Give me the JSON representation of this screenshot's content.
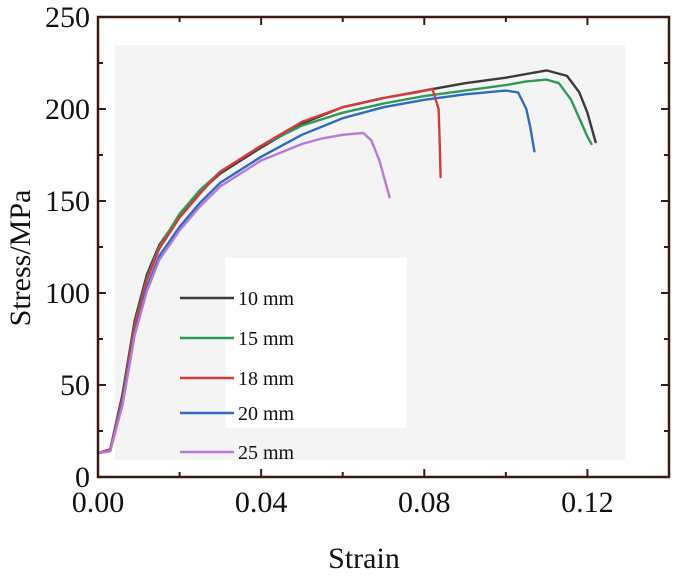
{
  "chart_data": {
    "type": "line",
    "xlabel": "Strain",
    "ylabel": "Stress/MPa",
    "xlim": [
      0,
      0.14
    ],
    "ylim": [
      0,
      250
    ],
    "x_ticks": [
      "0.00",
      "0.04",
      "0.08",
      "0.12"
    ],
    "x_tick_values": [
      0,
      0.04,
      0.08,
      0.12
    ],
    "y_ticks": [
      "0",
      "50",
      "100",
      "150",
      "200",
      "250"
    ],
    "y_tick_values": [
      0,
      50,
      100,
      150,
      200,
      250
    ],
    "grid": false,
    "legend_position": "center-left",
    "series": [
      {
        "name": "10 mm",
        "color": "#3a3a3a",
        "points": [
          [
            0,
            13
          ],
          [
            0.003,
            15
          ],
          [
            0.006,
            45
          ],
          [
            0.009,
            85
          ],
          [
            0.012,
            110
          ],
          [
            0.015,
            126
          ],
          [
            0.02,
            142
          ],
          [
            0.025,
            155
          ],
          [
            0.03,
            165
          ],
          [
            0.04,
            179
          ],
          [
            0.05,
            192
          ],
          [
            0.06,
            201
          ],
          [
            0.07,
            206
          ],
          [
            0.08,
            210
          ],
          [
            0.09,
            214
          ],
          [
            0.1,
            217
          ],
          [
            0.105,
            219
          ],
          [
            0.11,
            221
          ],
          [
            0.115,
            218
          ],
          [
            0.118,
            209
          ],
          [
            0.12,
            198
          ],
          [
            0.121,
            190
          ],
          [
            0.122,
            182
          ]
        ]
      },
      {
        "name": "15 mm",
        "color": "#2e9a5a",
        "points": [
          [
            0,
            13
          ],
          [
            0.003,
            15
          ],
          [
            0.006,
            43
          ],
          [
            0.009,
            83
          ],
          [
            0.012,
            108
          ],
          [
            0.015,
            125
          ],
          [
            0.02,
            143
          ],
          [
            0.025,
            156
          ],
          [
            0.03,
            166
          ],
          [
            0.04,
            180
          ],
          [
            0.05,
            191
          ],
          [
            0.06,
            198
          ],
          [
            0.07,
            203
          ],
          [
            0.08,
            207
          ],
          [
            0.09,
            210
          ],
          [
            0.1,
            213
          ],
          [
            0.105,
            215
          ],
          [
            0.11,
            216
          ],
          [
            0.113,
            214
          ],
          [
            0.116,
            205
          ],
          [
            0.118,
            195
          ],
          [
            0.12,
            185
          ],
          [
            0.121,
            181
          ]
        ]
      },
      {
        "name": "18 mm",
        "color": "#d83a3a",
        "points": [
          [
            0,
            13
          ],
          [
            0.003,
            15
          ],
          [
            0.006,
            42
          ],
          [
            0.009,
            82
          ],
          [
            0.012,
            107
          ],
          [
            0.015,
            124
          ],
          [
            0.02,
            141
          ],
          [
            0.025,
            154
          ],
          [
            0.03,
            166
          ],
          [
            0.04,
            180
          ],
          [
            0.05,
            193
          ],
          [
            0.06,
            201
          ],
          [
            0.07,
            206
          ],
          [
            0.078,
            209
          ],
          [
            0.082,
            211
          ],
          [
            0.0835,
            200
          ],
          [
            0.0838,
            180
          ],
          [
            0.084,
            163
          ]
        ]
      },
      {
        "name": "20 mm",
        "color": "#2f6bc0",
        "points": [
          [
            0,
            13
          ],
          [
            0.003,
            14
          ],
          [
            0.006,
            40
          ],
          [
            0.009,
            78
          ],
          [
            0.012,
            103
          ],
          [
            0.015,
            120
          ],
          [
            0.02,
            136
          ],
          [
            0.025,
            149
          ],
          [
            0.03,
            160
          ],
          [
            0.04,
            174
          ],
          [
            0.05,
            186
          ],
          [
            0.06,
            195
          ],
          [
            0.07,
            201
          ],
          [
            0.08,
            205
          ],
          [
            0.09,
            208
          ],
          [
            0.1,
            210
          ],
          [
            0.103,
            209
          ],
          [
            0.105,
            200
          ],
          [
            0.106,
            190
          ],
          [
            0.107,
            177
          ]
        ]
      },
      {
        "name": "25 mm",
        "color": "#b87ad8",
        "points": [
          [
            0,
            13
          ],
          [
            0.003,
            14
          ],
          [
            0.006,
            39
          ],
          [
            0.009,
            77
          ],
          [
            0.012,
            101
          ],
          [
            0.015,
            118
          ],
          [
            0.02,
            134
          ],
          [
            0.025,
            147
          ],
          [
            0.03,
            158
          ],
          [
            0.04,
            172
          ],
          [
            0.05,
            181
          ],
          [
            0.055,
            184
          ],
          [
            0.06,
            186
          ],
          [
            0.065,
            187
          ],
          [
            0.067,
            183
          ],
          [
            0.069,
            172
          ],
          [
            0.0705,
            160
          ],
          [
            0.0715,
            152
          ]
        ]
      }
    ]
  }
}
